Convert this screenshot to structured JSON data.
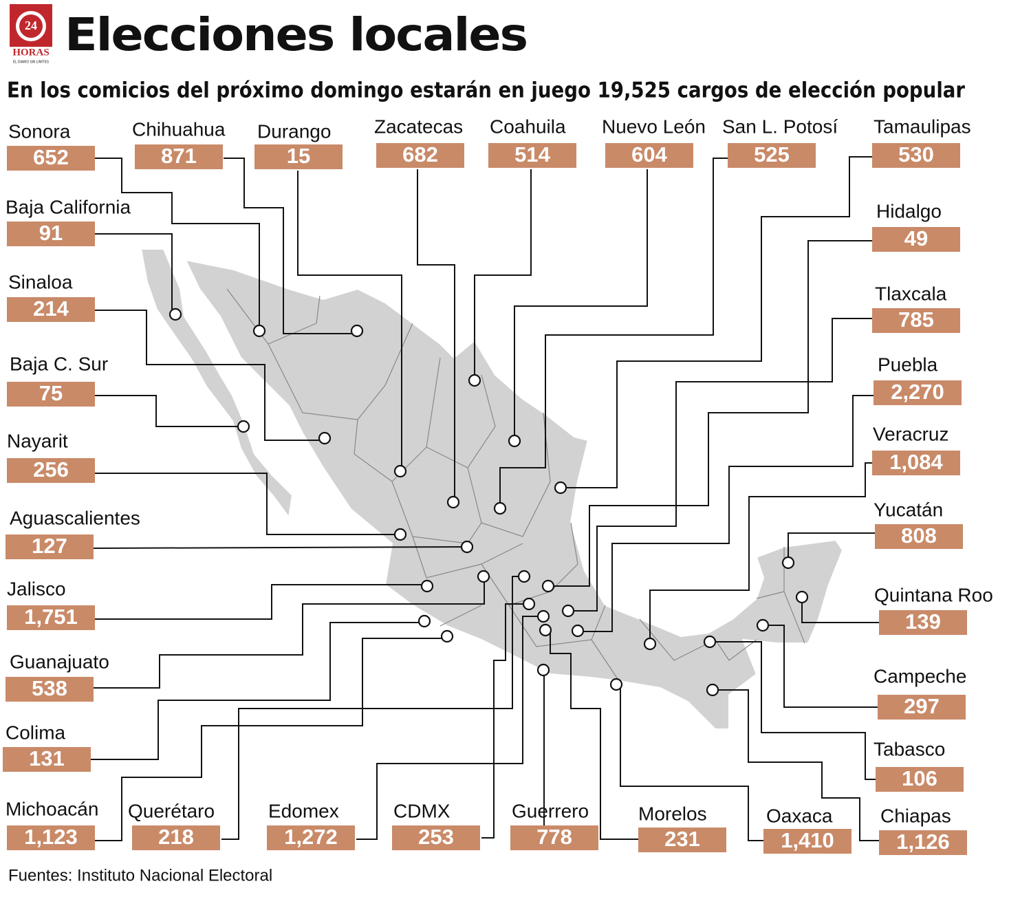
{
  "header": {
    "title": "Elecciones locales",
    "subtitle": "En los comicios del próximo domingo estarán en juego 19,525 cargos de elección popular"
  },
  "logo": {
    "number": "24",
    "name": "HORAS",
    "tagline": "EL DIARIO SIN LÍMITES"
  },
  "states": [
    {
      "name": "Sonora",
      "value": "652"
    },
    {
      "name": "Chihuahua",
      "value": "871"
    },
    {
      "name": "Durango",
      "value": "15"
    },
    {
      "name": "Zacatecas",
      "value": "682"
    },
    {
      "name": "Coahuila",
      "value": "514"
    },
    {
      "name": "Nuevo León",
      "value": "604"
    },
    {
      "name": "San L. Potosí",
      "value": "525"
    },
    {
      "name": "Tamaulipas",
      "value": "530"
    },
    {
      "name": "Baja California",
      "value": "91"
    },
    {
      "name": "Sinaloa",
      "value": "214"
    },
    {
      "name": "Baja C. Sur",
      "value": "75"
    },
    {
      "name": "Nayarit",
      "value": "256"
    },
    {
      "name": "Aguascalientes",
      "value": "127"
    },
    {
      "name": "Jalisco",
      "value": "1,751"
    },
    {
      "name": "Guanajuato",
      "value": "538"
    },
    {
      "name": "Colima",
      "value": "131"
    },
    {
      "name": "Michoacán",
      "value": "1,123"
    },
    {
      "name": "Querétaro",
      "value": "218"
    },
    {
      "name": "Edomex",
      "value": "1,272"
    },
    {
      "name": "CDMX",
      "value": "253"
    },
    {
      "name": "Guerrero",
      "value": "778"
    },
    {
      "name": "Morelos",
      "value": "231"
    },
    {
      "name": "Oaxaca",
      "value": "1,410"
    },
    {
      "name": "Chiapas",
      "value": "1,126"
    },
    {
      "name": "Tabasco",
      "value": "106"
    },
    {
      "name": "Campeche",
      "value": "297"
    },
    {
      "name": "Quintana Roo",
      "value": "139"
    },
    {
      "name": "Yucatán",
      "value": "808"
    },
    {
      "name": "Veracruz",
      "value": "1,084"
    },
    {
      "name": "Puebla",
      "value": "2,270"
    },
    {
      "name": "Tlaxcala",
      "value": "785"
    },
    {
      "name": "Hidalgo",
      "value": "49"
    }
  ],
  "source": "Fuentes: Instituto Nacional Electoral"
}
